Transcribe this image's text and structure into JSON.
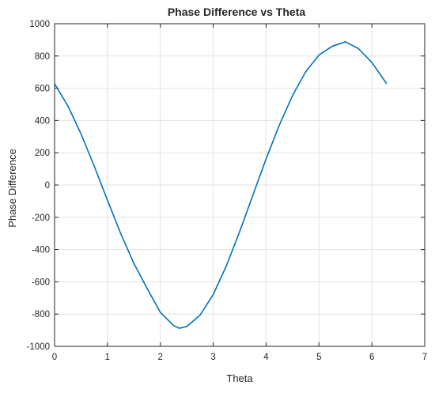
{
  "chart_data": {
    "type": "line",
    "title": "Phase Difference vs Theta",
    "xlabel": "Theta",
    "ylabel": "Phase Difference",
    "xlim": [
      0,
      7
    ],
    "ylim": [
      -1000,
      1000
    ],
    "xticks": [
      0,
      1,
      2,
      3,
      4,
      5,
      6,
      7
    ],
    "yticks": [
      -1000,
      -800,
      -600,
      -400,
      -200,
      0,
      200,
      400,
      600,
      800,
      1000
    ],
    "grid": true,
    "line_color": "#0072BD",
    "series": [
      {
        "x": [
          0.0,
          0.25,
          0.5,
          0.75,
          1.0,
          1.25,
          1.5,
          1.75,
          2.0,
          2.25,
          2.36,
          2.5,
          2.75,
          3.0,
          3.25,
          3.5,
          3.75,
          4.0,
          4.25,
          4.5,
          4.75,
          5.0,
          5.25,
          5.5,
          5.75,
          6.0,
          6.28
        ],
        "y": [
          628,
          492,
          317,
          117,
          -94,
          -300,
          -486,
          -641,
          -789,
          -871,
          -888,
          -877,
          -807,
          -679,
          -500,
          -289,
          -63,
          162,
          371,
          555,
          703,
          806,
          860,
          888,
          845,
          760,
          628
        ]
      }
    ]
  }
}
